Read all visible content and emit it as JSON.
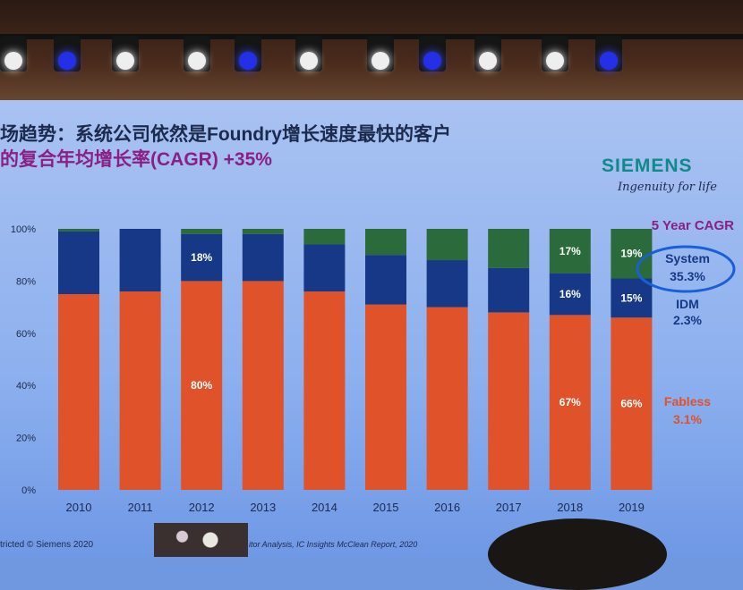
{
  "slide": {
    "title_line1": "场趋势：系统公司依然是Foundry增长速度最快的客户",
    "title_line2": "的复合年均增长率(CAGR) +35%",
    "logo": "SIEMENS",
    "tagline": "Ingenuity for life",
    "footer_left": "tricted © Siemens 2020",
    "footer_source": "itor Analysis, IC Insights McClean Report, 2020"
  },
  "colors": {
    "fabless": "#e0522a",
    "idm": "#163887",
    "system": "#2b6a3a",
    "title_accent": "#8a1f85",
    "circle": "#1a5fd6"
  },
  "chart_data": {
    "type": "bar",
    "stacked": true,
    "categories": [
      "2010",
      "2011",
      "2012",
      "2013",
      "2014",
      "2015",
      "2016",
      "2017",
      "2018",
      "2019"
    ],
    "series": [
      {
        "name": "Fabless",
        "values": [
          75,
          76,
          80,
          80,
          76,
          71,
          70,
          68,
          67,
          66
        ]
      },
      {
        "name": "IDM",
        "values": [
          24,
          24,
          18,
          18,
          18,
          19,
          18,
          17,
          16,
          15
        ]
      },
      {
        "name": "System",
        "values": [
          1,
          0,
          2,
          2,
          6,
          10,
          12,
          15,
          17,
          19
        ]
      }
    ],
    "data_labels": [
      {
        "series": "IDM",
        "category": "2012",
        "text": "18%"
      },
      {
        "series": "Fabless",
        "category": "2012",
        "text": "80%"
      },
      {
        "series": "System",
        "category": "2018",
        "text": "17%"
      },
      {
        "series": "IDM",
        "category": "2018",
        "text": "16%"
      },
      {
        "series": "Fabless",
        "category": "2018",
        "text": "67%"
      },
      {
        "series": "System",
        "category": "2019",
        "text": "19%"
      },
      {
        "series": "IDM",
        "category": "2019",
        "text": "15%"
      },
      {
        "series": "Fabless",
        "category": "2019",
        "text": "66%"
      }
    ],
    "yticks": [
      "0%",
      "20%",
      "40%",
      "60%",
      "80%",
      "100%"
    ],
    "ylim": [
      0,
      100
    ],
    "legend_title": "5 Year CAGR",
    "legend": [
      {
        "name": "System",
        "value": "35.3%"
      },
      {
        "name": "IDM",
        "value": "2.3%"
      },
      {
        "name": "Fabless",
        "value": "3.1%"
      }
    ],
    "legend_placement": "right"
  }
}
